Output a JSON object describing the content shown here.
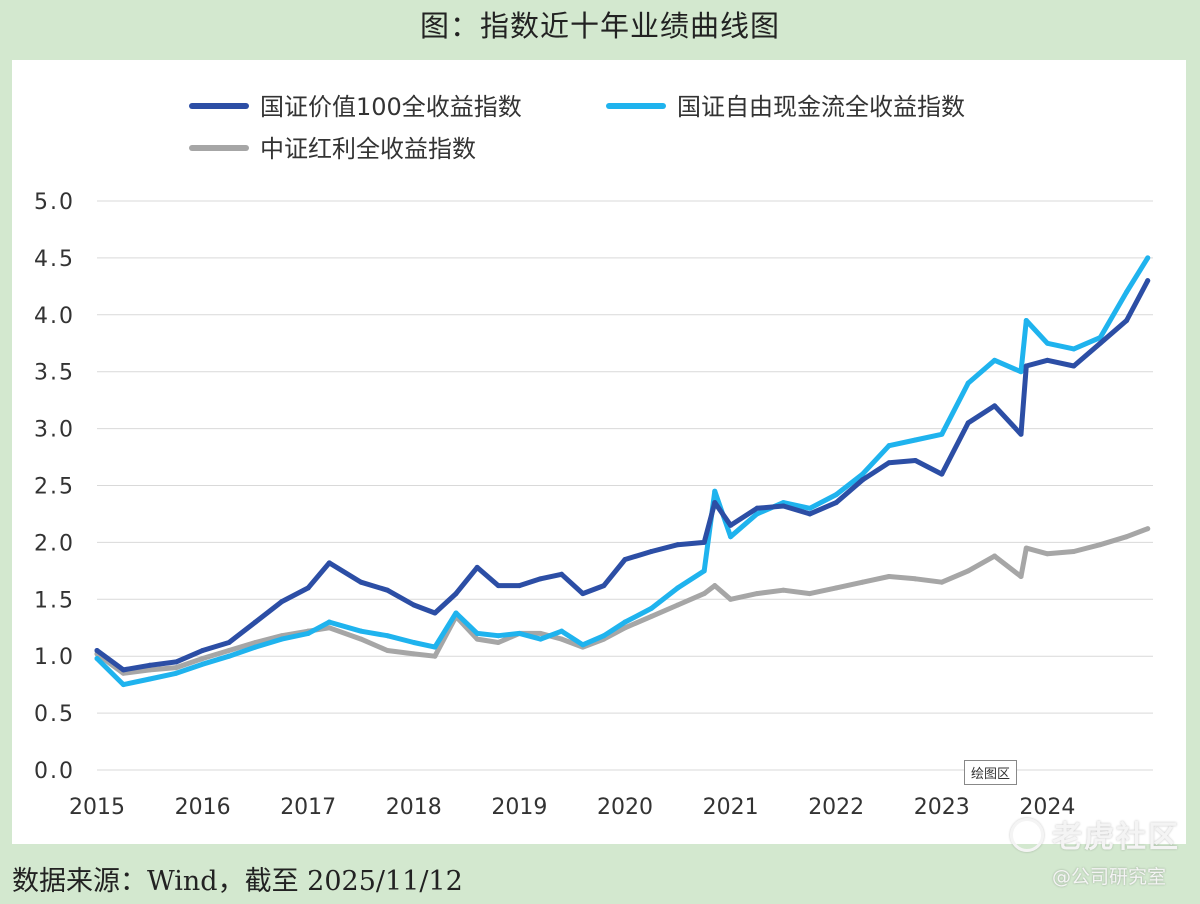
{
  "title": "图：指数近十年业绩曲线图",
  "source": "数据来源：Wind，截至 2025/11/12",
  "plot_area_tag": "绘图区",
  "watermark": {
    "main": "老虎社区",
    "sub": "@公司研究室"
  },
  "colors": {
    "value100": "#2c4ea5",
    "fcf": "#1fb3ee",
    "dividend": "#a6a6a6",
    "grid": "#d9d9d9",
    "background": "#d3e8cf"
  },
  "chart_data": {
    "type": "line",
    "title": "",
    "xlabel": "",
    "ylabel": "",
    "ylim": [
      0,
      5
    ],
    "y_ticks": [
      "0.0",
      "0.5",
      "1.0",
      "1.5",
      "2.0",
      "2.5",
      "3.0",
      "3.5",
      "4.0",
      "4.5",
      "5.0"
    ],
    "x_ticks": [
      "2015",
      "2016",
      "2017",
      "2018",
      "2019",
      "2020",
      "2021",
      "2022",
      "2023",
      "2024"
    ],
    "legend_position": "top",
    "grid": true,
    "x": [
      2015.0,
      2015.25,
      2015.5,
      2015.75,
      2016.0,
      2016.25,
      2016.5,
      2016.75,
      2017.0,
      2017.2,
      2017.5,
      2017.75,
      2018.0,
      2018.2,
      2018.4,
      2018.6,
      2018.8,
      2019.0,
      2019.2,
      2019.4,
      2019.6,
      2019.8,
      2020.0,
      2020.25,
      2020.5,
      2020.75,
      2020.85,
      2021.0,
      2021.25,
      2021.5,
      2021.75,
      2022.0,
      2022.25,
      2022.5,
      2022.75,
      2023.0,
      2023.25,
      2023.5,
      2023.75,
      2023.8,
      2024.0,
      2024.25,
      2024.5,
      2024.75,
      2024.95
    ],
    "series": [
      {
        "name": "国证价值100全收益指数",
        "color": "#2c4ea5",
        "values": [
          1.05,
          0.88,
          0.92,
          0.95,
          1.05,
          1.12,
          1.3,
          1.48,
          1.6,
          1.82,
          1.65,
          1.58,
          1.45,
          1.38,
          1.55,
          1.78,
          1.62,
          1.62,
          1.68,
          1.72,
          1.55,
          1.62,
          1.85,
          1.92,
          1.98,
          2.0,
          2.35,
          2.15,
          2.3,
          2.32,
          2.25,
          2.35,
          2.55,
          2.7,
          2.72,
          2.6,
          3.05,
          3.2,
          2.95,
          3.55,
          3.6,
          3.55,
          3.75,
          3.95,
          4.3
        ]
      },
      {
        "name": "国证自由现金流全收益指数",
        "color": "#1fb3ee",
        "values": [
          0.98,
          0.75,
          0.8,
          0.85,
          0.93,
          1.0,
          1.08,
          1.15,
          1.2,
          1.3,
          1.22,
          1.18,
          1.12,
          1.08,
          1.38,
          1.2,
          1.18,
          1.2,
          1.15,
          1.22,
          1.1,
          1.18,
          1.3,
          1.42,
          1.6,
          1.75,
          2.45,
          2.05,
          2.25,
          2.35,
          2.3,
          2.42,
          2.6,
          2.85,
          2.9,
          2.95,
          3.4,
          3.6,
          3.5,
          3.95,
          3.75,
          3.7,
          3.8,
          4.2,
          4.5
        ]
      },
      {
        "name": "中证红利全收益指数",
        "color": "#a6a6a6",
        "values": [
          1.02,
          0.85,
          0.88,
          0.9,
          0.98,
          1.05,
          1.12,
          1.18,
          1.22,
          1.25,
          1.15,
          1.05,
          1.02,
          1.0,
          1.35,
          1.15,
          1.12,
          1.2,
          1.2,
          1.15,
          1.08,
          1.15,
          1.25,
          1.35,
          1.45,
          1.55,
          1.62,
          1.5,
          1.55,
          1.58,
          1.55,
          1.6,
          1.65,
          1.7,
          1.68,
          1.65,
          1.75,
          1.88,
          1.7,
          1.95,
          1.9,
          1.92,
          1.98,
          2.05,
          2.12
        ]
      }
    ]
  }
}
